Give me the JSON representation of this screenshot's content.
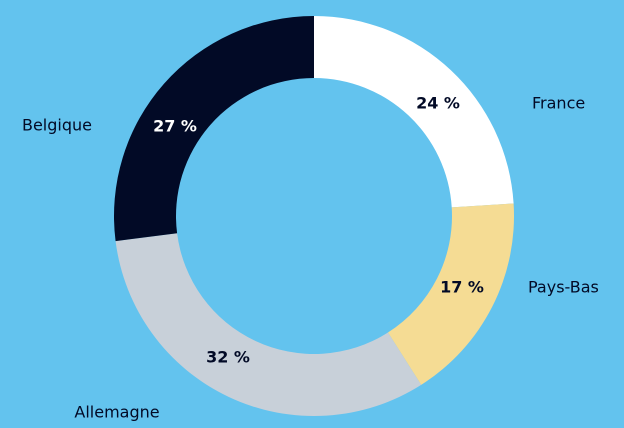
{
  "chart_data": {
    "type": "donut",
    "categories": [
      "France",
      "Pays-Bas",
      "Allemagne",
      "Belgique"
    ],
    "values": [
      24,
      17,
      32,
      27
    ],
    "value_labels": [
      "24 %",
      "17 %",
      "32 %",
      "27 %"
    ],
    "colors": [
      "#ffffff",
      "#f5dc94",
      "#c8d0d9",
      "#020a26"
    ]
  }
}
